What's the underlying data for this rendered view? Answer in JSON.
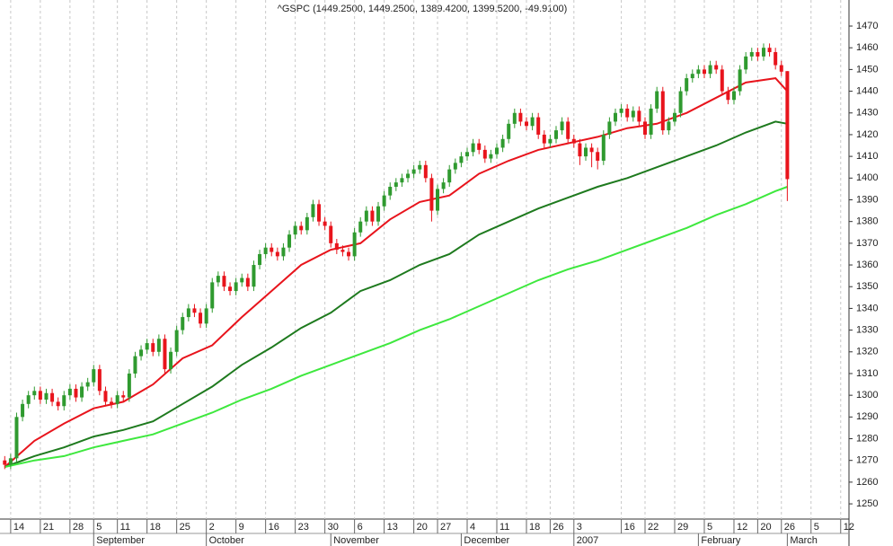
{
  "chart_data": {
    "type": "candlestick",
    "title": "^GSPC (1449.2500, 1449.2500, 1389.4200, 1399.5200, -49.9100)",
    "up_color": "#2f9a2f",
    "down_color": "#e8141c",
    "xlim": [
      -0.8,
      142.4
    ],
    "ylim": [
      1243,
      1482
    ],
    "yticks": [
      1250,
      1260,
      1270,
      1280,
      1290,
      1300,
      1310,
      1320,
      1330,
      1340,
      1350,
      1360,
      1370,
      1380,
      1390,
      1400,
      1410,
      1420,
      1430,
      1440,
      1450,
      1460,
      1470
    ],
    "xticks": [
      {
        "value": 1,
        "label": "14"
      },
      {
        "value": 6,
        "label": "21"
      },
      {
        "value": 11,
        "label": "28"
      },
      {
        "value": 15,
        "label": "5"
      },
      {
        "value": 19,
        "label": "11"
      },
      {
        "value": 24,
        "label": "18"
      },
      {
        "value": 29,
        "label": "25"
      },
      {
        "value": 34,
        "label": "2"
      },
      {
        "value": 39,
        "label": "9"
      },
      {
        "value": 44,
        "label": "16"
      },
      {
        "value": 49,
        "label": "23"
      },
      {
        "value": 54,
        "label": "30"
      },
      {
        "value": 59,
        "label": "6"
      },
      {
        "value": 64,
        "label": "13"
      },
      {
        "value": 69,
        "label": "20"
      },
      {
        "value": 73,
        "label": "27"
      },
      {
        "value": 78,
        "label": "4"
      },
      {
        "value": 83,
        "label": "11"
      },
      {
        "value": 88,
        "label": "18"
      },
      {
        "value": 92,
        "label": "26"
      },
      {
        "value": 96,
        "label": "3"
      },
      {
        "value": 104,
        "label": "16"
      },
      {
        "value": 108,
        "label": "22"
      },
      {
        "value": 113,
        "label": "29"
      },
      {
        "value": 118,
        "label": "5"
      },
      {
        "value": 123,
        "label": "12"
      },
      {
        "value": 127,
        "label": "20"
      },
      {
        "value": 131,
        "label": "26"
      },
      {
        "value": 136,
        "label": "5"
      },
      {
        "value": 141,
        "label": "12"
      }
    ],
    "month_ticks": [
      {
        "value": 15,
        "label": "September"
      },
      {
        "value": 34,
        "label": "October"
      },
      {
        "value": 55,
        "label": "November"
      },
      {
        "value": 77,
        "label": "December"
      },
      {
        "value": 96,
        "label": "2007"
      },
      {
        "value": 117,
        "label": "February"
      },
      {
        "value": 132,
        "label": "March"
      }
    ],
    "open": [
      1270,
      1268,
      1271,
      1290,
      1296,
      1300,
      1302,
      1298,
      1301,
      1297,
      1295,
      1300,
      1303,
      1299,
      1304,
      1306,
      1312,
      1302,
      1297,
      1296,
      1300,
      1299,
      1310,
      1318,
      1321,
      1324,
      1320,
      1326,
      1312,
      1320,
      1330,
      1336,
      1340,
      1338,
      1333,
      1340,
      1352,
      1355,
      1350,
      1348,
      1352,
      1354,
      1350,
      1360,
      1365,
      1368,
      1366,
      1364,
      1368,
      1374,
      1378,
      1376,
      1382,
      1388,
      1380,
      1378,
      1370,
      1367,
      1366,
      1364,
      1375,
      1380,
      1385,
      1380,
      1387,
      1392,
      1396,
      1398,
      1400,
      1402,
      1404,
      1406,
      1400,
      1385,
      1395,
      1398,
      1404,
      1407,
      1410,
      1412,
      1416,
      1413,
      1409,
      1411,
      1414,
      1418,
      1425,
      1430,
      1426,
      1424,
      1428,
      1420,
      1416,
      1418,
      1422,
      1426,
      1418,
      1416,
      1410,
      1414,
      1412,
      1408,
      1420,
      1426,
      1430,
      1432,
      1428,
      1431,
      1426,
      1420,
      1432,
      1440,
      1422,
      1426,
      1430,
      1440,
      1446,
      1448,
      1450,
      1448,
      1452,
      1450,
      1440,
      1436,
      1440,
      1450,
      1456,
      1458,
      1456,
      1460,
      1458,
      1452,
      1449.25
    ],
    "high": [
      1272,
      1273,
      1292,
      1298,
      1302,
      1304,
      1304,
      1303,
      1303,
      1299,
      1302,
      1305,
      1305,
      1306,
      1308,
      1314,
      1314,
      1304,
      1299,
      1302,
      1302,
      1312,
      1320,
      1323,
      1326,
      1326,
      1328,
      1328,
      1322,
      1332,
      1338,
      1342,
      1342,
      1340,
      1342,
      1354,
      1357,
      1357,
      1352,
      1354,
      1356,
      1356,
      1362,
      1367,
      1370,
      1370,
      1368,
      1370,
      1376,
      1380,
      1380,
      1384,
      1390,
      1390,
      1382,
      1380,
      1372,
      1369,
      1368,
      1377,
      1382,
      1387,
      1387,
      1389,
      1394,
      1398,
      1400,
      1402,
      1404,
      1406,
      1408,
      1408,
      1402,
      1397,
      1400,
      1406,
      1409,
      1412,
      1414,
      1418,
      1418,
      1415,
      1413,
      1416,
      1420,
      1427,
      1432,
      1432,
      1428,
      1430,
      1430,
      1422,
      1420,
      1424,
      1428,
      1428,
      1420,
      1418,
      1416,
      1416,
      1414,
      1422,
      1428,
      1432,
      1434,
      1434,
      1433,
      1433,
      1428,
      1434,
      1442,
      1442,
      1428,
      1432,
      1442,
      1448,
      1450,
      1452,
      1452,
      1454,
      1454,
      1452,
      1442,
      1442,
      1452,
      1458,
      1460,
      1460,
      1462,
      1462,
      1460,
      1454,
      1449.25
    ],
    "low": [
      1266,
      1266,
      1269,
      1288,
      1294,
      1298,
      1296,
      1296,
      1295,
      1293,
      1293,
      1298,
      1297,
      1297,
      1302,
      1304,
      1300,
      1295,
      1294,
      1294,
      1297,
      1297,
      1308,
      1316,
      1319,
      1318,
      1318,
      1310,
      1310,
      1318,
      1328,
      1334,
      1336,
      1331,
      1331,
      1338,
      1350,
      1348,
      1346,
      1346,
      1350,
      1348,
      1348,
      1358,
      1363,
      1364,
      1362,
      1362,
      1366,
      1372,
      1374,
      1374,
      1380,
      1378,
      1376,
      1368,
      1365,
      1364,
      1362,
      1362,
      1373,
      1378,
      1378,
      1378,
      1385,
      1390,
      1394,
      1396,
      1398,
      1400,
      1402,
      1398,
      1380,
      1383,
      1393,
      1396,
      1402,
      1405,
      1408,
      1410,
      1411,
      1407,
      1407,
      1409,
      1412,
      1416,
      1423,
      1424,
      1422,
      1422,
      1418,
      1414,
      1414,
      1416,
      1420,
      1416,
      1414,
      1406,
      1408,
      1405,
      1404,
      1406,
      1418,
      1424,
      1428,
      1426,
      1426,
      1424,
      1418,
      1418,
      1430,
      1420,
      1420,
      1424,
      1428,
      1438,
      1444,
      1446,
      1446,
      1446,
      1448,
      1438,
      1434,
      1434,
      1438,
      1448,
      1454,
      1454,
      1454,
      1456,
      1450,
      1447,
      1389.42
    ],
    "close": [
      1268,
      1271,
      1290,
      1296,
      1300,
      1302,
      1298,
      1301,
      1297,
      1295,
      1300,
      1303,
      1299,
      1304,
      1306,
      1312,
      1302,
      1297,
      1296,
      1300,
      1299,
      1310,
      1318,
      1321,
      1324,
      1320,
      1326,
      1312,
      1320,
      1330,
      1336,
      1340,
      1338,
      1333,
      1340,
      1352,
      1355,
      1350,
      1348,
      1352,
      1354,
      1350,
      1360,
      1365,
      1368,
      1366,
      1364,
      1368,
      1374,
      1378,
      1376,
      1382,
      1388,
      1380,
      1378,
      1370,
      1367,
      1366,
      1364,
      1375,
      1380,
      1385,
      1380,
      1387,
      1392,
      1396,
      1398,
      1400,
      1402,
      1404,
      1406,
      1400,
      1385,
      1395,
      1398,
      1404,
      1407,
      1410,
      1412,
      1416,
      1413,
      1409,
      1411,
      1414,
      1418,
      1425,
      1430,
      1426,
      1424,
      1428,
      1420,
      1416,
      1418,
      1422,
      1426,
      1418,
      1416,
      1410,
      1414,
      1412,
      1408,
      1420,
      1426,
      1430,
      1432,
      1428,
      1431,
      1426,
      1420,
      1432,
      1440,
      1422,
      1426,
      1430,
      1440,
      1446,
      1448,
      1450,
      1448,
      1452,
      1450,
      1440,
      1436,
      1440,
      1450,
      1456,
      1458,
      1456,
      1460,
      1458,
      1452,
      1449,
      1399.52
    ],
    "moving_averages": [
      {
        "color": "#e8141c",
        "x": [
          0,
          5,
          10,
          15,
          20,
          25,
          30,
          35,
          40,
          45,
          50,
          55,
          60,
          65,
          70,
          75,
          80,
          85,
          90,
          95,
          100,
          105,
          110,
          115,
          120,
          125,
          130,
          132
        ],
        "values": [
          1267,
          1279,
          1287,
          1294,
          1297,
          1305,
          1317,
          1323,
          1336,
          1348,
          1360,
          1367,
          1370,
          1381,
          1389,
          1392,
          1402,
          1408,
          1413,
          1416,
          1419,
          1423,
          1425,
          1430,
          1437,
          1444,
          1446,
          1440
        ]
      },
      {
        "color": "#1e7a1e",
        "x": [
          0,
          5,
          10,
          15,
          20,
          25,
          30,
          35,
          40,
          45,
          50,
          55,
          60,
          65,
          70,
          75,
          80,
          85,
          90,
          95,
          100,
          105,
          110,
          115,
          120,
          125,
          130,
          132
        ],
        "values": [
          1267,
          1272,
          1276,
          1281,
          1284,
          1288,
          1296,
          1304,
          1314,
          1322,
          1331,
          1338,
          1348,
          1353,
          1360,
          1365,
          1374,
          1380,
          1386,
          1391,
          1396,
          1400,
          1405,
          1410,
          1415,
          1421,
          1426,
          1425
        ]
      },
      {
        "color": "#3ee83e",
        "x": [
          0,
          5,
          10,
          15,
          20,
          25,
          30,
          35,
          40,
          45,
          50,
          55,
          60,
          65,
          70,
          75,
          80,
          85,
          90,
          95,
          100,
          105,
          110,
          115,
          120,
          125,
          130,
          132
        ],
        "values": [
          1267,
          1270,
          1272,
          1276,
          1279,
          1282,
          1287,
          1292,
          1298,
          1303,
          1309,
          1314,
          1319,
          1324,
          1330,
          1335,
          1341,
          1347,
          1353,
          1358,
          1362,
          1367,
          1372,
          1377,
          1383,
          1388,
          1394,
          1396
        ]
      }
    ]
  }
}
